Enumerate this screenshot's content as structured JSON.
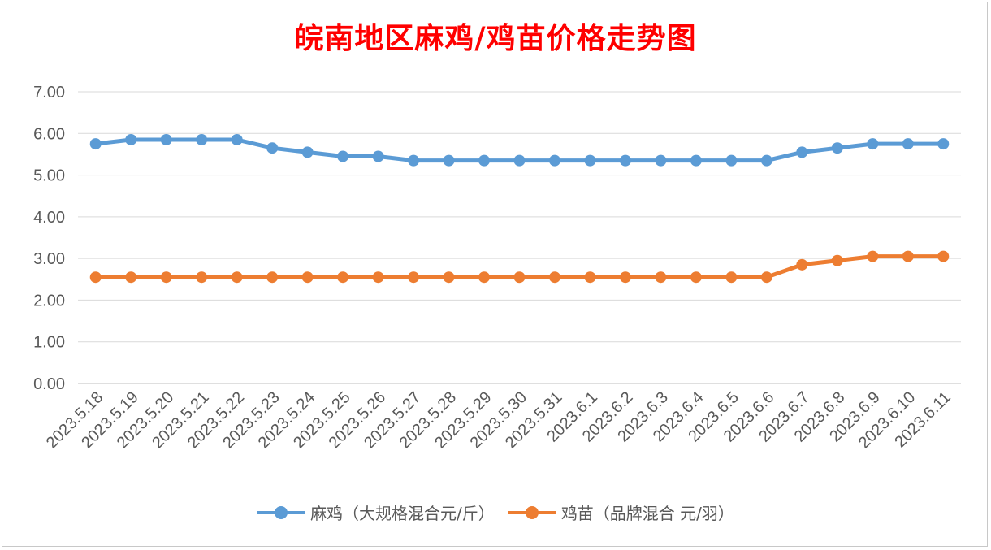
{
  "chart_data": {
    "type": "line",
    "title": "皖南地区麻鸡/鸡苗价格走势图",
    "categories": [
      "2023.5.18",
      "2023.5.19",
      "2023.5.20",
      "2023.5.21",
      "2023.5.22",
      "2023.5.23",
      "2023.5.24",
      "2023.5.25",
      "2023.5.26",
      "2023.5.27",
      "2023.5.28",
      "2023.5.29",
      "2023.5.30",
      "2023.5.31",
      "2023.6.1",
      "2023.6.2",
      "2023.6.3",
      "2023.6.4",
      "2023.6.5",
      "2023.6.6",
      "2023.6.7",
      "2023.6.8",
      "2023.6.9",
      "2023.6.10",
      "2023.6.11"
    ],
    "series": [
      {
        "name": "麻鸡（大规格混合元/斤）",
        "color": "#5b9bd5",
        "values": [
          5.75,
          5.85,
          5.85,
          5.85,
          5.85,
          5.65,
          5.55,
          5.45,
          5.45,
          5.35,
          5.35,
          5.35,
          5.35,
          5.35,
          5.35,
          5.35,
          5.35,
          5.35,
          5.35,
          5.35,
          5.55,
          5.65,
          5.75,
          5.75,
          5.75
        ]
      },
      {
        "name": "鸡苗（品牌混合 元/羽）",
        "color": "#ed7d31",
        "values": [
          2.55,
          2.55,
          2.55,
          2.55,
          2.55,
          2.55,
          2.55,
          2.55,
          2.55,
          2.55,
          2.55,
          2.55,
          2.55,
          2.55,
          2.55,
          2.55,
          2.55,
          2.55,
          2.55,
          2.55,
          2.85,
          2.95,
          3.05,
          3.05,
          3.05
        ]
      }
    ],
    "ylim": [
      0,
      7
    ],
    "yticks": [
      "0.00",
      "1.00",
      "2.00",
      "3.00",
      "4.00",
      "5.00",
      "6.00",
      "7.00"
    ],
    "xlabel": "",
    "ylabel": "",
    "grid": true,
    "legend_position": "bottom"
  }
}
